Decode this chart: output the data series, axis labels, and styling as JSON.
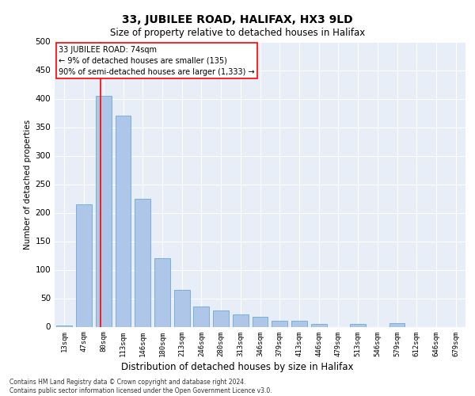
{
  "title": "33, JUBILEE ROAD, HALIFAX, HX3 9LD",
  "subtitle": "Size of property relative to detached houses in Halifax",
  "xlabel": "Distribution of detached houses by size in Halifax",
  "ylabel": "Number of detached properties",
  "bar_color": "#aec6e8",
  "bar_edge_color": "#5a9fd4",
  "background_color": "#e8eef8",
  "categories": [
    "13sqm",
    "47sqm",
    "80sqm",
    "113sqm",
    "146sqm",
    "180sqm",
    "213sqm",
    "246sqm",
    "280sqm",
    "313sqm",
    "346sqm",
    "379sqm",
    "413sqm",
    "446sqm",
    "479sqm",
    "513sqm",
    "546sqm",
    "579sqm",
    "612sqm",
    "646sqm",
    "679sqm"
  ],
  "values": [
    2,
    215,
    405,
    370,
    225,
    120,
    65,
    35,
    28,
    22,
    18,
    10,
    10,
    5,
    0,
    5,
    0,
    6,
    0,
    0,
    0
  ],
  "ylim": [
    0,
    500
  ],
  "yticks": [
    0,
    50,
    100,
    150,
    200,
    250,
    300,
    350,
    400,
    450,
    500
  ],
  "property_label": "33 JUBILEE ROAD: 74sqm",
  "annotation_line1": "← 9% of detached houses are smaller (135)",
  "annotation_line2": "90% of semi-detached houses are larger (1,333) →",
  "red_line_x": 1.85,
  "footer_line1": "Contains HM Land Registry data © Crown copyright and database right 2024.",
  "footer_line2": "Contains public sector information licensed under the Open Government Licence v3.0."
}
